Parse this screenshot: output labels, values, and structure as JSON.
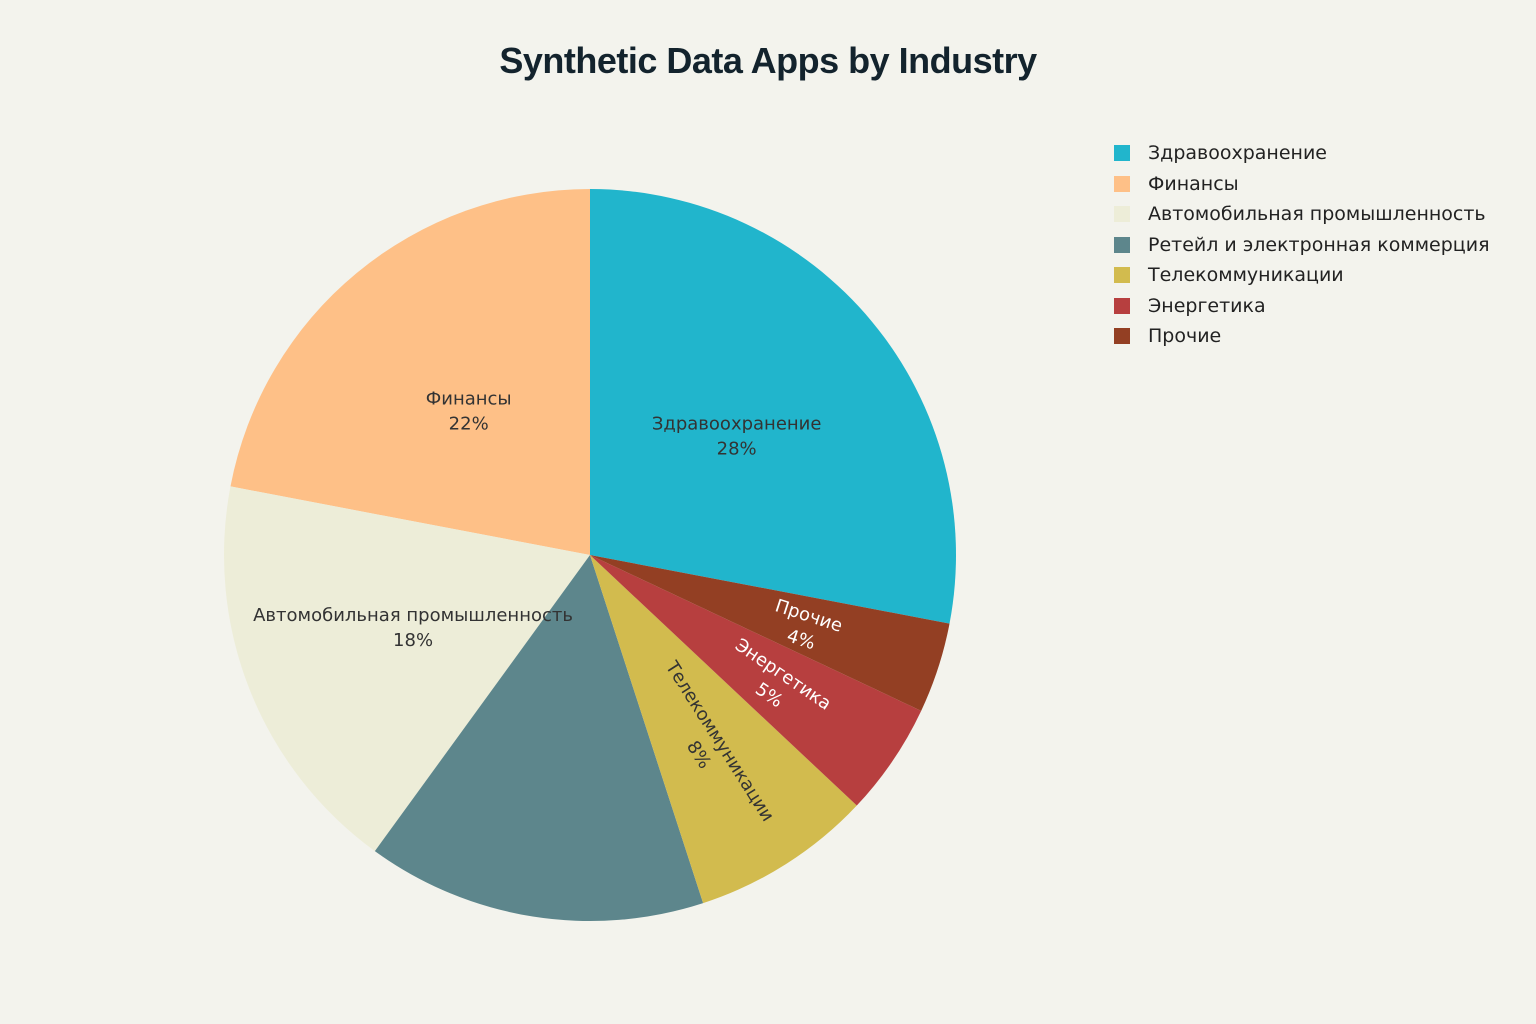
{
  "chart_data": {
    "type": "pie",
    "title": "Synthetic Data Apps by Industry",
    "legend_position": "top-right",
    "slices": [
      {
        "label": "Здравоохранение",
        "value": 28,
        "percent_text": "28%",
        "color": "#21b5cc",
        "text_color": "#333333",
        "show_label": true
      },
      {
        "label": "Финансы",
        "value": 22,
        "percent_text": "22%",
        "color": "#fec087",
        "text_color": "#333333",
        "show_label": true
      },
      {
        "label": "Автомобильная промышленность",
        "value": 18,
        "percent_text": "18%",
        "color": "#ededd8",
        "text_color": "#333333",
        "show_label": true
      },
      {
        "label": "Ретейл и электронная коммерция",
        "value": 15,
        "percent_text": "",
        "color": "#5d868c",
        "text_color": "#ffffff",
        "show_label": false
      },
      {
        "label": "Телекоммуникации",
        "value": 8,
        "percent_text": "8%",
        "color": "#d2bb4e",
        "text_color": "#333333",
        "show_label": true
      },
      {
        "label": "Энергетика",
        "value": 5,
        "percent_text": "5%",
        "color": "#b73f3f",
        "text_color": "#ffffff",
        "show_label": true
      },
      {
        "label": "Прочие",
        "value": 4,
        "percent_text": "4%",
        "color": "#933f23",
        "text_color": "#ffffff",
        "show_label": true
      }
    ]
  }
}
